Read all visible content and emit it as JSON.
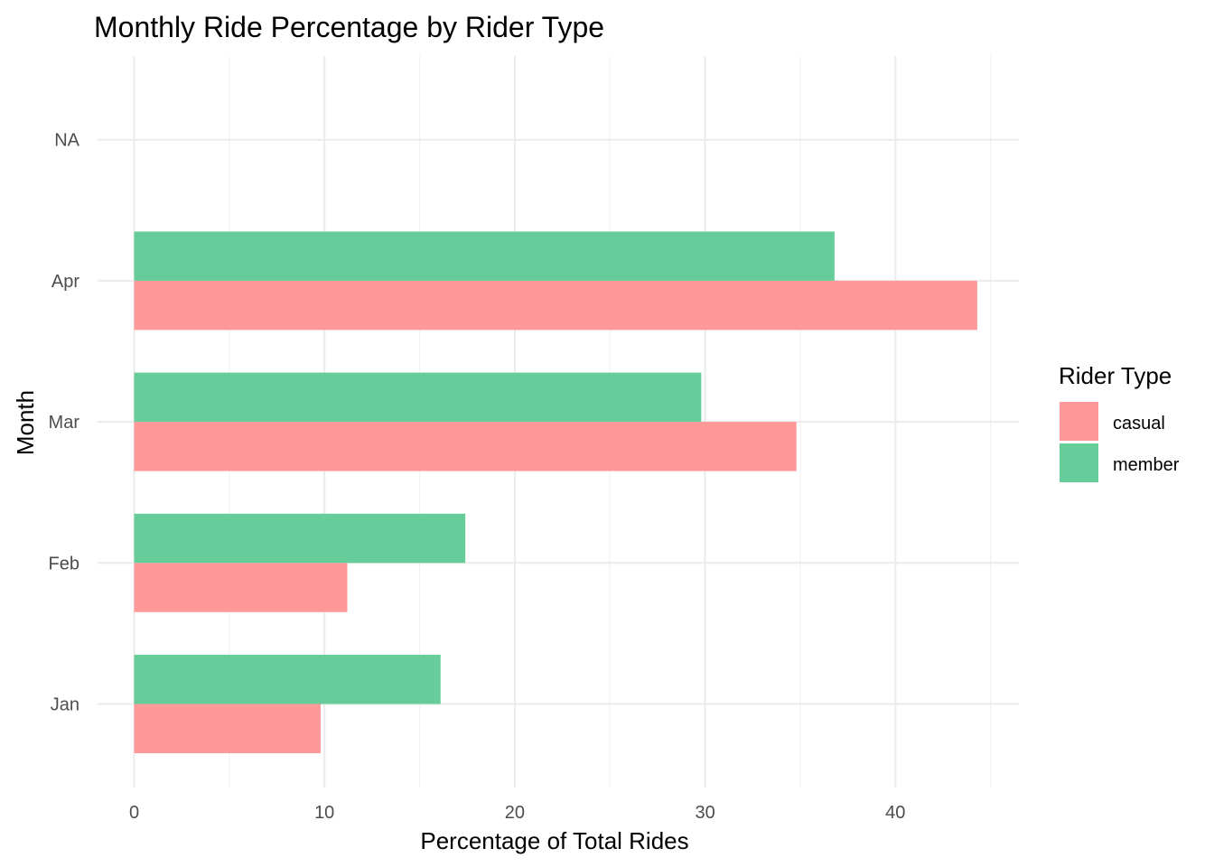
{
  "chart_data": {
    "type": "bar",
    "orientation": "horizontal",
    "title": "Monthly Ride Percentage by Rider Type",
    "xlabel": "Percentage of Total Rides",
    "ylabel": "Month",
    "categories": [
      "Jan",
      "Feb",
      "Mar",
      "Apr",
      "NA"
    ],
    "x_ticks": [
      "0",
      "10",
      "20",
      "30",
      "40"
    ],
    "xlim": [
      0,
      46
    ],
    "legend": {
      "title": "Rider Type",
      "placement": "right"
    },
    "series": [
      {
        "name": "casual",
        "color": "#FF9999",
        "values": [
          9.8,
          11.2,
          34.8,
          44.3,
          null
        ]
      },
      {
        "name": "member",
        "color": "#66CC99",
        "values": [
          16.1,
          17.4,
          29.8,
          36.8,
          null
        ]
      }
    ],
    "grid": true
  }
}
